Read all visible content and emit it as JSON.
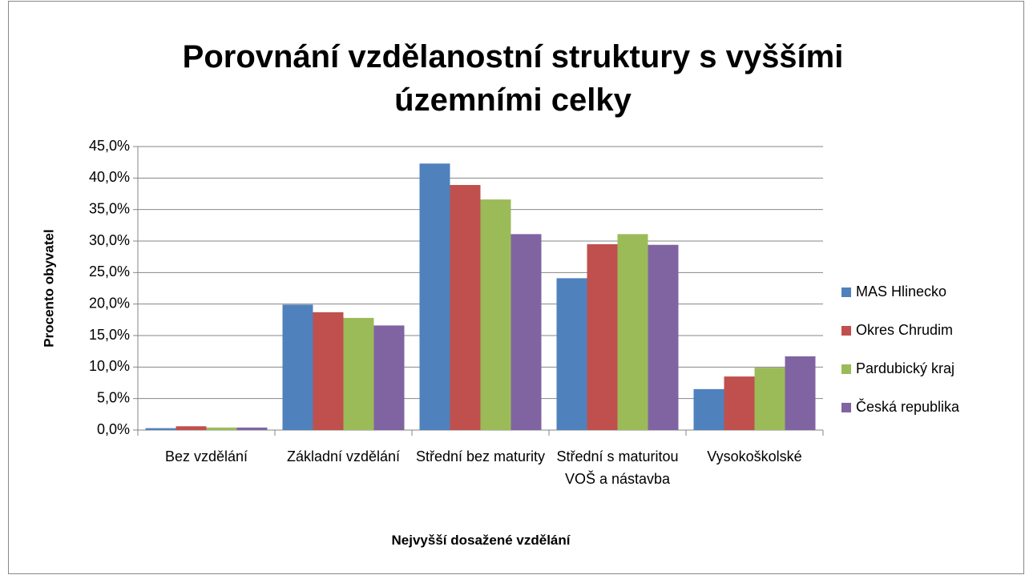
{
  "chart_data": {
    "type": "bar",
    "title": "Porovnání vzdělanostní struktury s vyššími územními celky",
    "x_label": "Nejvyšší dosažené vzdělání",
    "y_label": "Procento obyvatel",
    "categories": [
      "Bez vzdělání",
      "Základní vzdělání",
      "Střední bez maturity",
      "Střední s maturitou VOŠ a nástavba",
      "Vysokoškolské"
    ],
    "series": [
      {
        "name": "MAS Hlinecko",
        "color": "#4f81bd",
        "values": [
          0.3,
          19.9,
          42.3,
          24.1,
          6.5
        ]
      },
      {
        "name": "Okres Chrudim",
        "color": "#c0504d",
        "values": [
          0.6,
          18.7,
          38.9,
          29.5,
          8.5
        ]
      },
      {
        "name": "Pardubický kraj",
        "color": "#9bbb59",
        "values": [
          0.4,
          17.8,
          36.6,
          31.1,
          9.9
        ]
      },
      {
        "name": "Česká republika",
        "color": "#8064a2",
        "values": [
          0.4,
          16.6,
          31.1,
          29.4,
          11.7
        ]
      }
    ],
    "ylim": [
      0,
      45
    ],
    "yticks": [
      {
        "value": 0,
        "label": "0,0%"
      },
      {
        "value": 5,
        "label": "5,0%"
      },
      {
        "value": 10,
        "label": "10,0%"
      },
      {
        "value": 15,
        "label": "15,0%"
      },
      {
        "value": 20,
        "label": "20,0%"
      },
      {
        "value": 25,
        "label": "25,0%"
      },
      {
        "value": 30,
        "label": "30,0%"
      },
      {
        "value": 35,
        "label": "35,0%"
      },
      {
        "value": 40,
        "label": "40,0%"
      },
      {
        "value": 45,
        "label": "45,0%"
      }
    ],
    "grid": true,
    "legend": "right"
  }
}
